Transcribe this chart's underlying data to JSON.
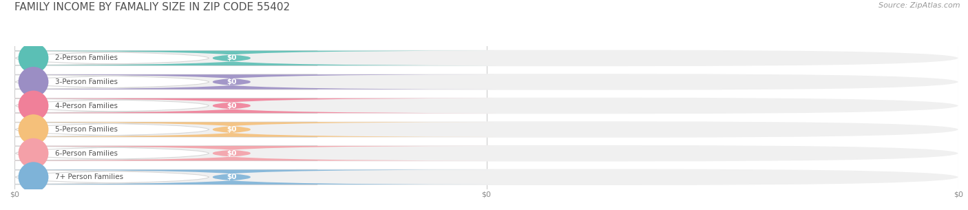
{
  "title": "FAMILY INCOME BY FAMALIY SIZE IN ZIP CODE 55402",
  "source_text": "Source: ZipAtlas.com",
  "categories": [
    "2-Person Families",
    "3-Person Families",
    "4-Person Families",
    "5-Person Families",
    "6-Person Families",
    "7+ Person Families"
  ],
  "values": [
    0,
    0,
    0,
    0,
    0,
    0
  ],
  "bar_colors": [
    "#5BBFB5",
    "#9B8EC4",
    "#F08099",
    "#F5C07A",
    "#F4A0A8",
    "#7EB3D8"
  ],
  "label_bg": "#FFFFFF",
  "bar_bg": "#F0F0F0",
  "background_color": "#FFFFFF",
  "title_fontsize": 11,
  "label_fontsize": 7.5,
  "value_fontsize": 7.5,
  "source_fontsize": 8,
  "figsize": [
    14.06,
    3.05
  ],
  "dpi": 100,
  "x_tick_labels": [
    "$0",
    "$0",
    "$0"
  ],
  "x_tick_positions": [
    0.0,
    0.5,
    1.0
  ]
}
